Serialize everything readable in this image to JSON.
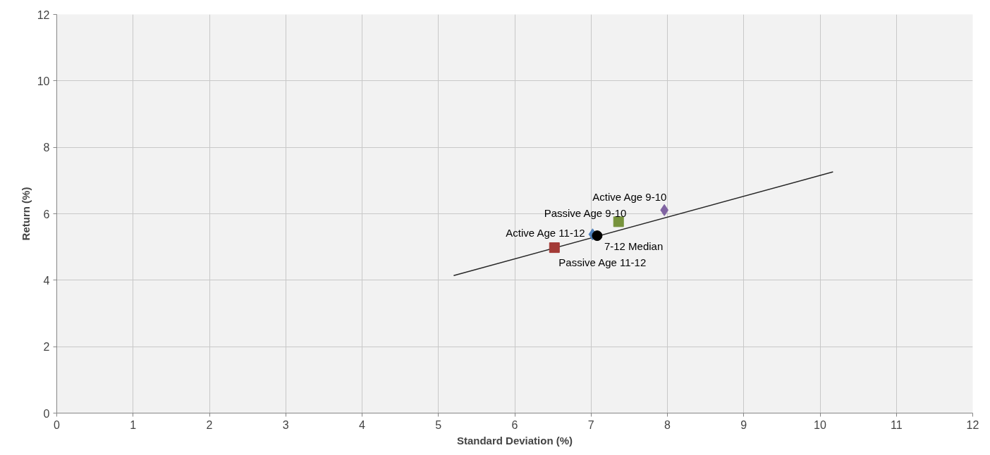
{
  "chart_data": {
    "type": "scatter",
    "xlabel": "Standard Deviation (%)",
    "ylabel": "Return (%)",
    "xlim": [
      0,
      12
    ],
    "ylim": [
      0,
      12
    ],
    "xticks": [
      0,
      1,
      2,
      3,
      4,
      5,
      6,
      7,
      8,
      9,
      10,
      11,
      12
    ],
    "yticks": [
      0,
      2,
      4,
      6,
      8,
      10,
      12
    ],
    "grid": true,
    "series": [
      {
        "type": "line",
        "color": "#262626",
        "x": [
          5.2,
          10.17
        ],
        "values": [
          4.14,
          7.26
        ],
        "marker": "none"
      },
      {
        "name": "Active Age 11-12",
        "color": "#4f81bd",
        "x": [
          7.02
        ],
        "values": [
          5.38
        ],
        "marker": "diamond"
      },
      {
        "name": "Passive Age 11-12",
        "color": "#a33a36",
        "x": [
          6.52
        ],
        "values": [
          4.98
        ],
        "marker": "square"
      },
      {
        "name": "Passive Age 9-10",
        "color": "#77933c",
        "x": [
          7.36
        ],
        "values": [
          5.76
        ],
        "marker": "square"
      },
      {
        "name": "Active Age 9-10",
        "color": "#8064a2",
        "x": [
          7.96
        ],
        "values": [
          6.11
        ],
        "marker": "diamond"
      },
      {
        "name": "7-12 Median",
        "color": "#000000",
        "x": [
          7.08
        ],
        "values": [
          5.34
        ],
        "marker": "circle"
      }
    ]
  }
}
